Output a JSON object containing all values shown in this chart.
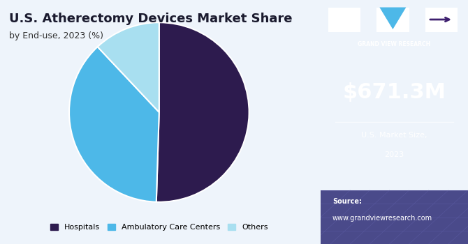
{
  "title": "U.S. Atherectomy Devices Market Share",
  "subtitle": "by End-use, 2023 (%)",
  "slices": [
    50.5,
    37.5,
    12.0
  ],
  "labels": [
    "Hospitals",
    "Ambulatory Care Centers",
    "Others"
  ],
  "colors": [
    "#2d1b4e",
    "#4db8e8",
    "#a8dff0"
  ],
  "start_angle": 90,
  "legend_labels": [
    "Hospitals",
    "Ambulatory Care Centers",
    "Others"
  ],
  "main_bg": "#eef4fb",
  "sidebar_bg": "#3d1f6e",
  "sidebar_bottom_bg": "#4a4a8a",
  "market_size": "$671.3M",
  "market_label1": "U.S. Market Size,",
  "market_label2": "2023",
  "source_line1": "Source:",
  "source_line2": "www.grandviewresearch.com",
  "brand_name": "GRAND VIEW RESEARCH"
}
